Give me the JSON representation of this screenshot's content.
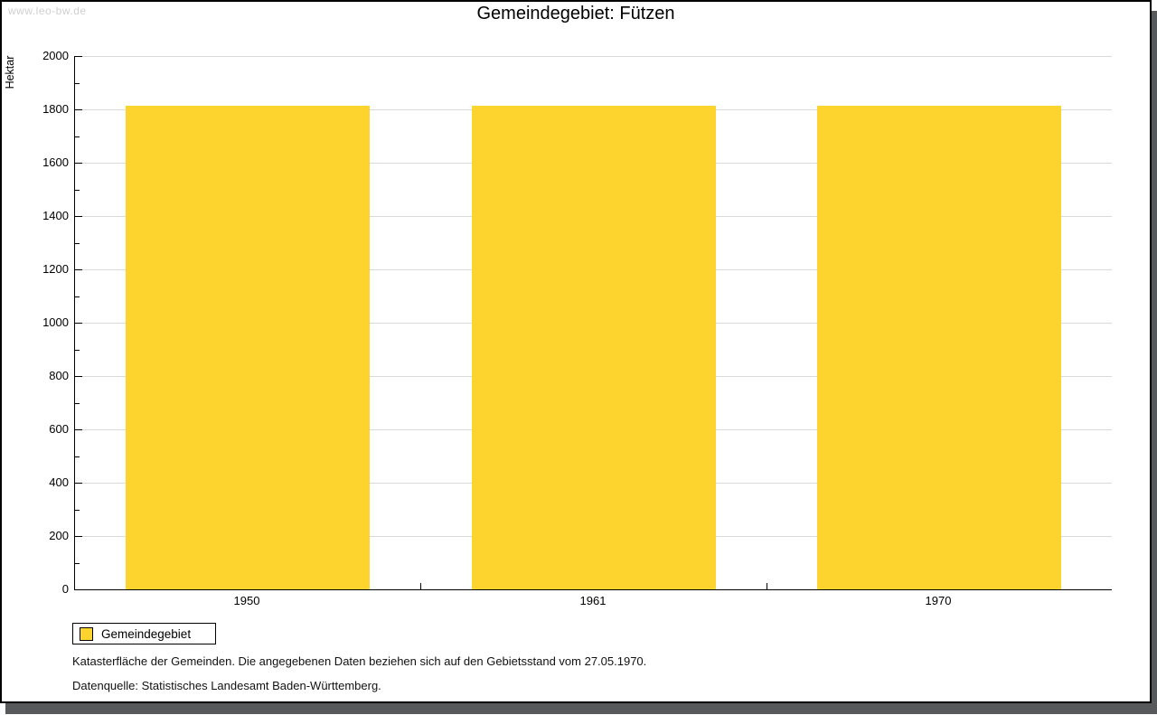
{
  "watermark": "www.leo-bw.de",
  "title": "Gemeindegebiet: Fützen",
  "chart_data": {
    "type": "bar",
    "title": "Gemeindegebiet: Fützen",
    "categories": [
      "1950",
      "1961",
      "1970"
    ],
    "series": [
      {
        "name": "Gemeindegebiet",
        "values": [
          1813,
          1813,
          1813
        ]
      }
    ],
    "xlabel": "",
    "ylabel": "Hektar",
    "ylim": [
      0,
      2000
    ],
    "yticks_major": [
      0,
      200,
      400,
      600,
      800,
      1000,
      1200,
      1400,
      1600,
      1800,
      2000
    ],
    "ytick_minor_step": 100,
    "grid": "horizontal-major-only",
    "legend_position": "bottom-left",
    "bar_color": "#fcd42d"
  },
  "legend": {
    "items": [
      {
        "label": "Gemeindegebiet",
        "color": "#fcd42d"
      }
    ]
  },
  "footnotes": [
    "Katasterfläche der Gemeinden. Die angegebenen Daten beziehen sich auf den Gebietsstand vom 27.05.1970.",
    "Datenquelle: Statistisches Landesamt Baden-Württemberg."
  ],
  "colors": {
    "bar": "#fcd42d",
    "gridline": "#d9d9d9",
    "axis": "#000000",
    "watermark": "#cfcfcf",
    "frame_shadow": "#58595b",
    "background": "#ffffff"
  }
}
